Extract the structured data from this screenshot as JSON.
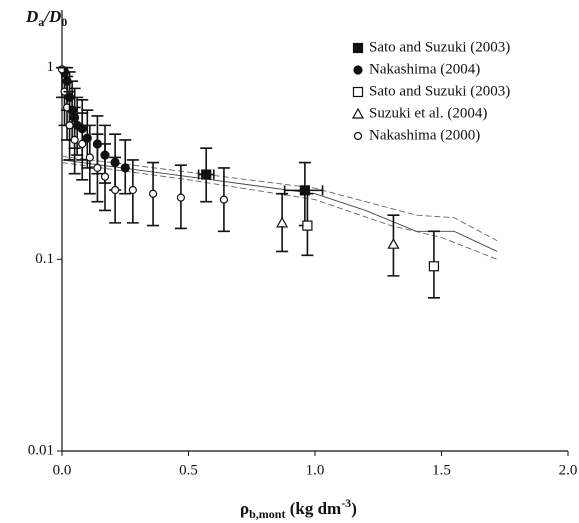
{
  "chart_data": {
    "type": "scatter",
    "y_label": [
      "D",
      "a",
      "/D",
      "0"
    ],
    "x_label": [
      "ρ",
      "b,mont",
      "  (kg dm",
      "-3",
      ")"
    ],
    "xlim": [
      0,
      2
    ],
    "ylim": [
      0.01,
      2
    ],
    "log_y": true,
    "xticks": [
      {
        "value": 0,
        "label": "0.0"
      },
      {
        "value": 0.5,
        "label": "0.5"
      },
      {
        "value": 1,
        "label": "1.0"
      },
      {
        "value": 1.5,
        "label": "1.5"
      },
      {
        "value": 2,
        "label": "2.0"
      }
    ],
    "yticks": [
      0.01,
      0.1,
      1
    ],
    "legend": "top-right",
    "series": [
      {
        "name": "Sato and Suzuki (2003)",
        "marker": "filled-square",
        "color": "#111",
        "x": [
          0.57,
          0.96
        ],
        "values": [
          0.277,
          0.229
        ],
        "y_low": [
          0.2,
          0.15
        ],
        "y_high": [
          0.38,
          0.32
        ],
        "x_low": [
          0.54,
          0.88
        ],
        "x_high": [
          0.6,
          1.03
        ]
      },
      {
        "name": "Nakashima (2004)",
        "marker": "filled-circle",
        "color": "#111",
        "x": [
          0.01,
          0.02,
          0.03,
          0.04,
          0.05,
          0.06,
          0.08,
          0.1,
          0.14,
          0.17,
          0.21,
          0.25
        ],
        "values": [
          0.95,
          0.85,
          0.7,
          0.6,
          0.55,
          0.5,
          0.48,
          0.43,
          0.4,
          0.35,
          0.32,
          0.3
        ],
        "y_low": [
          0.7,
          0.6,
          0.5,
          0.42,
          0.38,
          0.35,
          0.33,
          0.3,
          0.28,
          0.25,
          0.23,
          0.22
        ],
        "y_high": [
          1,
          1,
          0.95,
          0.85,
          0.78,
          0.7,
          0.68,
          0.6,
          0.56,
          0.5,
          0.45,
          0.42
        ]
      },
      {
        "name": "Sato and Suzuki (2003)",
        "marker": "open-square",
        "color": "#111",
        "x": [
          0.97,
          1.47
        ],
        "values": [
          0.15,
          0.092
        ],
        "y_low": [
          0.105,
          0.063
        ],
        "y_high": [
          0.22,
          0.14
        ]
      },
      {
        "name": "Suzuki et al. (2004)",
        "marker": "open-triangle",
        "color": "#111",
        "x": [
          0.87,
          1.31
        ],
        "values": [
          0.155,
          0.12
        ],
        "y_low": [
          0.11,
          0.082
        ],
        "y_high": [
          0.22,
          0.17
        ]
      },
      {
        "name": "Nakashima (2000)",
        "marker": "open-circle",
        "color": "#111",
        "x": [
          0.0,
          0.01,
          0.02,
          0.03,
          0.05,
          0.08,
          0.11,
          0.14,
          0.17,
          0.21,
          0.28,
          0.36,
          0.47,
          0.64
        ],
        "values": [
          0.98,
          0.75,
          0.62,
          0.5,
          0.42,
          0.4,
          0.34,
          0.3,
          0.27,
          0.23,
          0.23,
          0.22,
          0.21,
          0.205
        ],
        "y_low": [
          0.7,
          0.5,
          0.42,
          0.33,
          0.28,
          0.26,
          0.22,
          0.2,
          0.18,
          0.155,
          0.155,
          0.15,
          0.145,
          0.14
        ],
        "y_high": [
          1,
          1,
          0.9,
          0.75,
          0.62,
          0.58,
          0.5,
          0.45,
          0.4,
          0.34,
          0.33,
          0.32,
          0.31,
          0.3
        ]
      }
    ],
    "curves": [
      {
        "style": "solid",
        "color": "#444",
        "x": [
          0,
          0.5,
          1.0,
          1.2,
          1.4,
          1.55,
          1.72
        ],
        "values": [
          0.33,
          0.27,
          0.22,
          0.18,
          0.14,
          0.14,
          0.11
        ]
      },
      {
        "style": "dashed",
        "color": "#666",
        "x": [
          0,
          0.5,
          1.0,
          1.2,
          1.4,
          1.55,
          1.72
        ],
        "values": [
          0.345,
          0.285,
          0.235,
          0.2,
          0.17,
          0.165,
          0.125
        ]
      },
      {
        "style": "dashed",
        "color": "#666",
        "x": [
          0,
          0.5,
          1.0,
          1.3,
          1.5,
          1.72
        ],
        "values": [
          0.32,
          0.26,
          0.205,
          0.15,
          0.13,
          0.1
        ]
      }
    ]
  }
}
